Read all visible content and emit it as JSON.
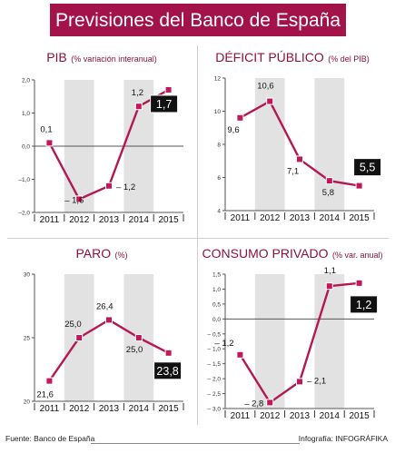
{
  "title": "Previsiones del Banco de España",
  "colors": {
    "brand": "#a3134a",
    "line": "#b31853",
    "marker": "#c2185b",
    "shade": "#e2e2e2",
    "callout": "#111111"
  },
  "footer": {
    "source": "Fuente: Banco de España",
    "credit": "Infografía: INFOGRÁFIKA"
  },
  "chart_data": [
    {
      "type": "line",
      "title": "PIB",
      "unit": "(% variación interanual)",
      "categories": [
        "2011",
        "2012",
        "2013",
        "2014",
        "2015"
      ],
      "values": [
        0.1,
        -1.6,
        -1.2,
        1.2,
        1.7
      ],
      "value_labels": [
        "0,1",
        "– 1,6",
        "– 1,2",
        "1,2",
        "1,7"
      ],
      "ylim": [
        -2.0,
        2.0
      ],
      "yticks": [
        2.0,
        1.0,
        0.0,
        -1.0,
        -2.0
      ],
      "ytick_labels": [
        "2,0",
        "1,0",
        "0,0",
        "–1,0",
        "–2,0"
      ],
      "zero_line": 0.0,
      "highlight_index": 4
    },
    {
      "type": "line",
      "title": "DÉFICIT PÚBLICO",
      "unit": "(% del PIB)",
      "categories": [
        "2011",
        "2012",
        "2013",
        "2014",
        "2015"
      ],
      "values": [
        9.6,
        10.6,
        7.1,
        5.8,
        5.5
      ],
      "value_labels": [
        "9,6",
        "10,6",
        "7,1",
        "5,8",
        "5,5"
      ],
      "ylim": [
        4,
        12
      ],
      "yticks": [
        12,
        10,
        8,
        6,
        4
      ],
      "ytick_labels": [
        "12",
        "10",
        "8",
        "6",
        "4"
      ],
      "highlight_index": 4
    },
    {
      "type": "line",
      "title": "PARO",
      "unit": "(%)",
      "categories": [
        "2011",
        "2012",
        "2013",
        "2014",
        "2015"
      ],
      "values": [
        21.6,
        25.0,
        26.4,
        25.0,
        23.8
      ],
      "value_labels": [
        "21,6",
        "25,0",
        "26,4",
        "25,0",
        "23,8"
      ],
      "ylim": [
        20,
        30
      ],
      "yticks": [
        30,
        25,
        20
      ],
      "ytick_labels": [
        "30",
        "25",
        "20"
      ],
      "highlight_index": 4
    },
    {
      "type": "line",
      "title": "CONSUMO PRIVADO",
      "unit": "(% var. anual)",
      "categories": [
        "2011",
        "2012",
        "2013",
        "2014",
        "2015"
      ],
      "values": [
        -1.2,
        -2.8,
        -2.1,
        1.1,
        1.2
      ],
      "value_labels": [
        "– 1,2",
        "– 2,8",
        "– 2,1",
        "1,1",
        "1,2"
      ],
      "ylim": [
        -3.0,
        1.5
      ],
      "yticks": [
        1.5,
        1.0,
        0.5,
        0.0,
        -0.5,
        -1.0,
        -1.5,
        -2.0,
        -2.5,
        -3.0
      ],
      "ytick_labels": [
        "1,5",
        "1,0",
        "0,5",
        "0,0",
        "– 0,5",
        "– 1,0",
        "– 1,5",
        "– 2,0",
        "– 2,5",
        "– 3,0"
      ],
      "zero_line": 0.0,
      "highlight_index": 4
    }
  ]
}
